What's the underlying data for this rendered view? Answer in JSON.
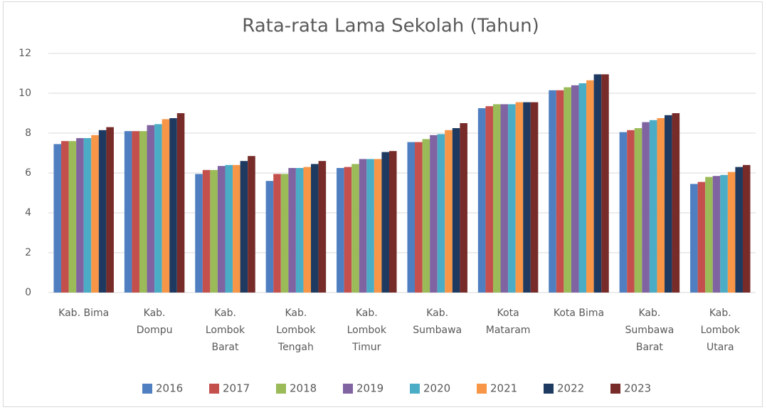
{
  "chart_data": {
    "type": "bar",
    "title": "Rata-rata Lama Sekolah (Tahun)",
    "categories": [
      "Kab. Bima",
      "Kab. Dompu",
      "Kab. Lombok Barat",
      "Kab. Lombok Tengah",
      "Kab. Lombok Timur",
      "Kab. Sumbawa",
      "Kota Mataram",
      "Kota Bima",
      "Kab. Sumbawa Barat",
      "Kab. Lombok Utara"
    ],
    "series": [
      {
        "name": "2016",
        "color": "#4f7fc0",
        "values": [
          7.45,
          8.1,
          5.95,
          5.6,
          6.25,
          7.55,
          9.25,
          10.15,
          8.05,
          5.45
        ]
      },
      {
        "name": "2017",
        "color": "#c4504d",
        "values": [
          7.6,
          8.1,
          6.15,
          5.95,
          6.3,
          7.55,
          9.35,
          10.15,
          8.15,
          5.55
        ]
      },
      {
        "name": "2018",
        "color": "#9bbb59",
        "values": [
          7.6,
          8.1,
          6.15,
          5.95,
          6.45,
          7.7,
          9.45,
          10.3,
          8.25,
          5.8
        ]
      },
      {
        "name": "2019",
        "color": "#8064a2",
        "values": [
          7.75,
          8.4,
          6.35,
          6.25,
          6.7,
          7.9,
          9.45,
          10.4,
          8.55,
          5.85
        ]
      },
      {
        "name": "2020",
        "color": "#4bacc6",
        "values": [
          7.75,
          8.45,
          6.4,
          6.25,
          6.7,
          7.95,
          9.45,
          10.5,
          8.65,
          5.9
        ]
      },
      {
        "name": "2021",
        "color": "#f79646",
        "values": [
          7.9,
          8.7,
          6.4,
          6.3,
          6.7,
          8.15,
          9.55,
          10.65,
          8.75,
          6.05
        ]
      },
      {
        "name": "2022",
        "color": "#1f3a60",
        "values": [
          8.15,
          8.75,
          6.6,
          6.45,
          7.05,
          8.25,
          9.55,
          10.95,
          8.9,
          6.3
        ]
      },
      {
        "name": "2023",
        "color": "#772c2a",
        "values": [
          8.3,
          9.0,
          6.85,
          6.6,
          7.1,
          8.5,
          9.55,
          10.95,
          9.0,
          6.4
        ]
      }
    ],
    "ylim": [
      0,
      12
    ],
    "yticks": [
      0,
      2,
      4,
      6,
      8,
      10,
      12
    ],
    "grid": true,
    "legend": "bottom"
  }
}
